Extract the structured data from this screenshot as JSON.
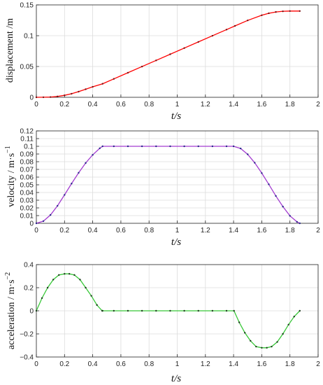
{
  "chart_data": [
    {
      "type": "line",
      "ylabel": "displacement /m",
      "xlabel": "t/s",
      "xlim": [
        0,
        2
      ],
      "ylim": [
        0,
        0.15
      ],
      "xticks": [
        0,
        0.2,
        0.4,
        0.6,
        0.8,
        1,
        1.2,
        1.4,
        1.6,
        1.8,
        2
      ],
      "yticks": [
        0,
        0.05,
        0.1,
        0.15
      ],
      "grid": true,
      "color": "#ff0000",
      "marker_color": "#7a1010",
      "series": [
        {
          "x": [
            0,
            0.05,
            0.1,
            0.15,
            0.2,
            0.25,
            0.3,
            0.35,
            0.4,
            0.47,
            0.55,
            0.65,
            0.75,
            0.85,
            0.95,
            1.05,
            1.15,
            1.25,
            1.35,
            1.41,
            1.5,
            1.6,
            1.65,
            1.7,
            1.75,
            1.8,
            1.87
          ],
          "y": [
            0,
            0.0001,
            0.0004,
            0.0014,
            0.0032,
            0.0058,
            0.0092,
            0.0131,
            0.017,
            0.0219,
            0.0299,
            0.0399,
            0.0499,
            0.0599,
            0.0699,
            0.0799,
            0.0899,
            0.0999,
            0.1099,
            0.1159,
            0.1248,
            0.1332,
            0.1364,
            0.1385,
            0.1396,
            0.14,
            0.14
          ]
        }
      ]
    },
    {
      "type": "line",
      "ylabel": "velocity / m·s",
      "ylabel_sup": "−1",
      "xlabel": "t/s",
      "xlim": [
        0,
        2
      ],
      "ylim": [
        0,
        0.12
      ],
      "xticks": [
        0,
        0.2,
        0.4,
        0.6,
        0.8,
        1,
        1.2,
        1.4,
        1.6,
        1.8,
        2
      ],
      "yticks": [
        0,
        0.01,
        0.02,
        0.03,
        0.04,
        0.05,
        0.06,
        0.07,
        0.08,
        0.09,
        0.1,
        0.11,
        0.12
      ],
      "grid": true,
      "color": "#a23cd0",
      "marker_color": "#2a2a8a",
      "series": [
        {
          "x": [
            0,
            0.05,
            0.1,
            0.15,
            0.2,
            0.25,
            0.3,
            0.35,
            0.4,
            0.45,
            0.47,
            0.55,
            0.65,
            0.75,
            0.85,
            0.95,
            1.05,
            1.15,
            1.25,
            1.35,
            1.4,
            1.45,
            1.5,
            1.55,
            1.6,
            1.65,
            1.7,
            1.75,
            1.8,
            1.85,
            1.87
          ],
          "y": [
            0,
            0.0028,
            0.0108,
            0.0227,
            0.0369,
            0.0516,
            0.0656,
            0.0783,
            0.0889,
            0.0974,
            0.1,
            0.1,
            0.1,
            0.1,
            0.1,
            0.1,
            0.1,
            0.1,
            0.1,
            0.1,
            0.1,
            0.0972,
            0.0896,
            0.0786,
            0.0652,
            0.0506,
            0.0355,
            0.0217,
            0.0097,
            0.0019,
            0
          ]
        }
      ]
    },
    {
      "type": "line",
      "ylabel": "acceleration / m·s",
      "ylabel_sup": "−2",
      "xlabel": "t/s",
      "xlim": [
        0,
        2
      ],
      "ylim": [
        -0.4,
        0.4
      ],
      "xticks": [
        0,
        0.2,
        0.4,
        0.6,
        0.8,
        1,
        1.2,
        1.4,
        1.6,
        1.8,
        2
      ],
      "yticks": [
        -0.4,
        -0.2,
        0,
        0.2,
        0.4
      ],
      "grid": true,
      "color": "#38c838",
      "marker_color": "#1d3d1d",
      "series": [
        {
          "x": [
            0,
            0.04,
            0.08,
            0.12,
            0.16,
            0.2,
            0.234,
            0.27,
            0.31,
            0.35,
            0.39,
            0.43,
            0.467,
            0.47,
            0.55,
            0.65,
            0.75,
            0.85,
            0.95,
            1.05,
            1.15,
            1.25,
            1.35,
            1.403,
            1.44,
            1.48,
            1.52,
            1.56,
            1.6,
            1.636,
            1.67,
            1.71,
            1.75,
            1.79,
            1.83,
            1.87
          ],
          "y": [
            0,
            0.11,
            0.2,
            0.27,
            0.31,
            0.32,
            0.32,
            0.31,
            0.27,
            0.2,
            0.13,
            0.05,
            0,
            0,
            0,
            0,
            0,
            0,
            0,
            0,
            0,
            0,
            0,
            0,
            -0.1,
            -0.19,
            -0.26,
            -0.31,
            -0.32,
            -0.32,
            -0.31,
            -0.27,
            -0.2,
            -0.12,
            -0.05,
            0
          ]
        }
      ]
    }
  ]
}
